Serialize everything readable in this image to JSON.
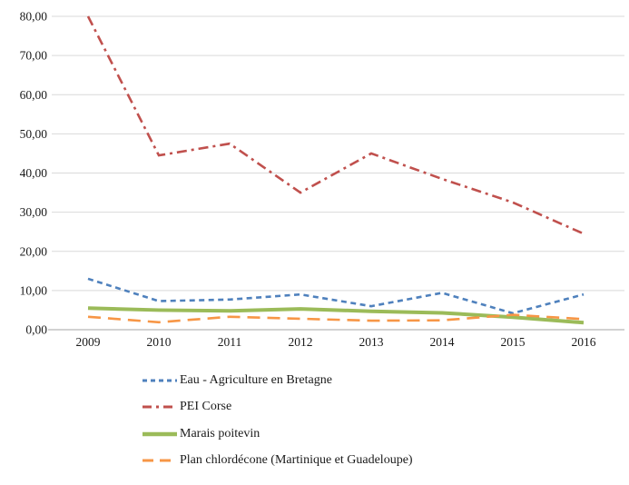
{
  "chart_data": {
    "type": "line",
    "title": "",
    "xlabel": "",
    "ylabel": "",
    "categories": [
      "2009",
      "2010",
      "2011",
      "2012",
      "2013",
      "2014",
      "2015",
      "2016"
    ],
    "y_ticks": [
      {
        "value": 0,
        "label": "0,00"
      },
      {
        "value": 10,
        "label": "10,00"
      },
      {
        "value": 20,
        "label": "20,00"
      },
      {
        "value": 30,
        "label": "30,00"
      },
      {
        "value": 40,
        "label": "40,00"
      },
      {
        "value": 50,
        "label": "50,00"
      },
      {
        "value": 60,
        "label": "60,00"
      },
      {
        "value": 70,
        "label": "70,00"
      },
      {
        "value": 80,
        "label": "80,00"
      }
    ],
    "ylim": [
      0,
      80
    ],
    "grid": true,
    "legend_position": "bottom-left",
    "colors": {
      "gridline": "#d9d9d9",
      "axis_line": "#a6a6a6",
      "text": "#1a1a1a",
      "background": "#ffffff"
    },
    "series": [
      {
        "name": "Eau - Agriculture en Bretagne",
        "color": "#4F81BD",
        "line_style": "dashed",
        "values": [
          13,
          7.3,
          7.7,
          9,
          6,
          9.4,
          4.2,
          9
        ]
      },
      {
        "name": "PEI Corse",
        "color": "#C0504D",
        "line_style": "dash-dot",
        "values": [
          80,
          44.5,
          47.5,
          35,
          45,
          38.5,
          32.5,
          24.5
        ]
      },
      {
        "name": "Marais poitevin",
        "color": "#9BBB59",
        "line_style": "solid",
        "values": [
          5.5,
          5,
          4.8,
          5.3,
          4.7,
          4.3,
          3.2,
          1.8
        ]
      },
      {
        "name": "Plan chlordécone (Martinique et Guadeloupe)",
        "color": "#F79646",
        "line_style": "long-dash",
        "values": [
          3.3,
          1.9,
          3.3,
          2.8,
          2.3,
          2.4,
          3.8,
          2.7
        ]
      }
    ]
  }
}
